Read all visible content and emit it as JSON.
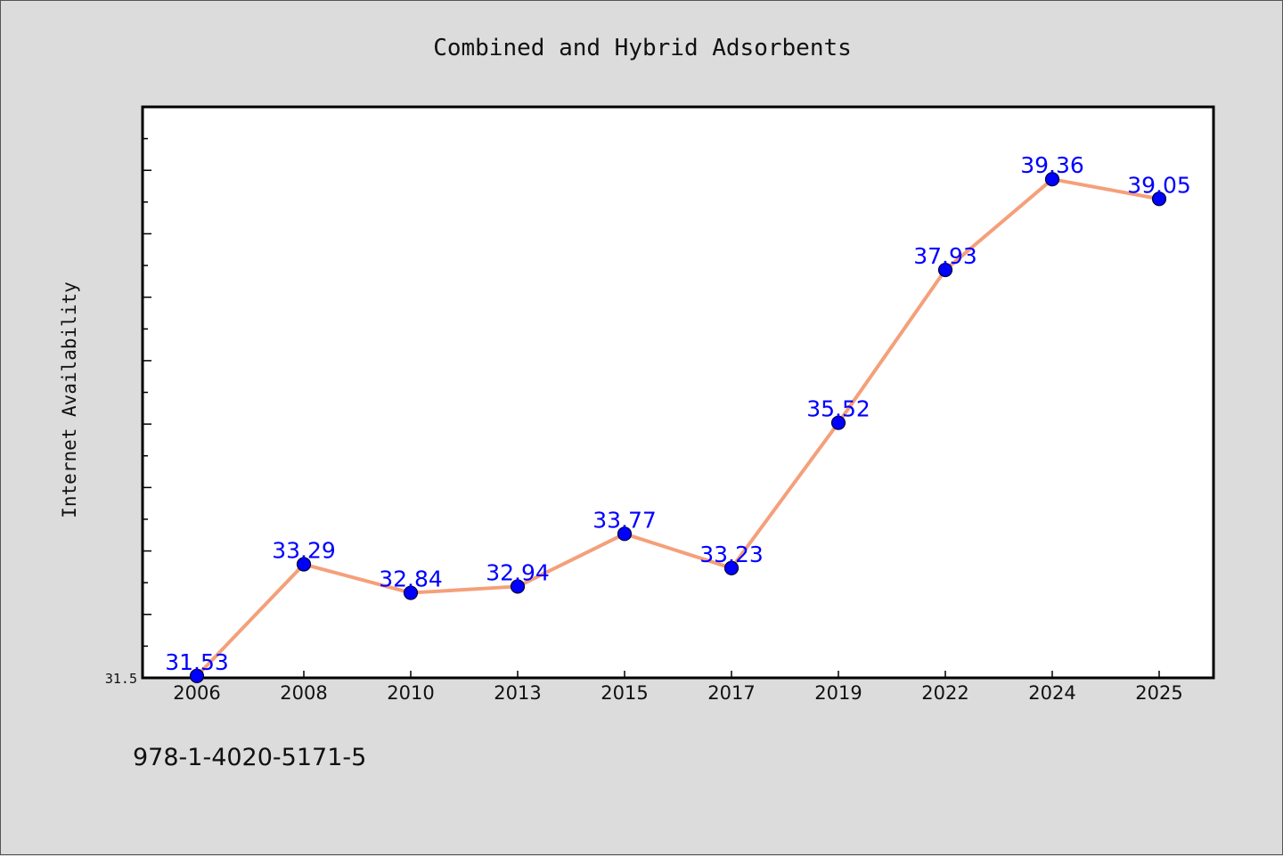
{
  "chart_data": {
    "type": "line",
    "title": "Combined and Hybrid Adsorbents",
    "xlabel": "",
    "ylabel": "Internet Availability",
    "categories": [
      "2006",
      "2008",
      "2010",
      "2013",
      "2015",
      "2017",
      "2019",
      "2022",
      "2024",
      "2025"
    ],
    "series": [
      {
        "values": [
          31.53,
          33.29,
          32.84,
          32.94,
          33.77,
          33.23,
          35.52,
          37.93,
          39.36,
          39.05
        ],
        "labels": [
          "31.53",
          "33.29",
          "32.84",
          "32.94",
          "33.77",
          "33.23",
          "35.52",
          "37.93",
          "39.36",
          "39.05"
        ]
      }
    ],
    "ylim": [
      31.5,
      40.5
    ],
    "yticks": [
      "31.5"
    ],
    "grid": false,
    "legend": "none",
    "colors": {
      "line": "#f4a07a",
      "marker": "#0000ff",
      "marker_edge": "#000033",
      "label": "#0000ff",
      "plot_bg": "#ffffff",
      "page_bg": "#dcdcdc"
    }
  },
  "footer": {
    "code": "978-1-4020-5171-5"
  }
}
